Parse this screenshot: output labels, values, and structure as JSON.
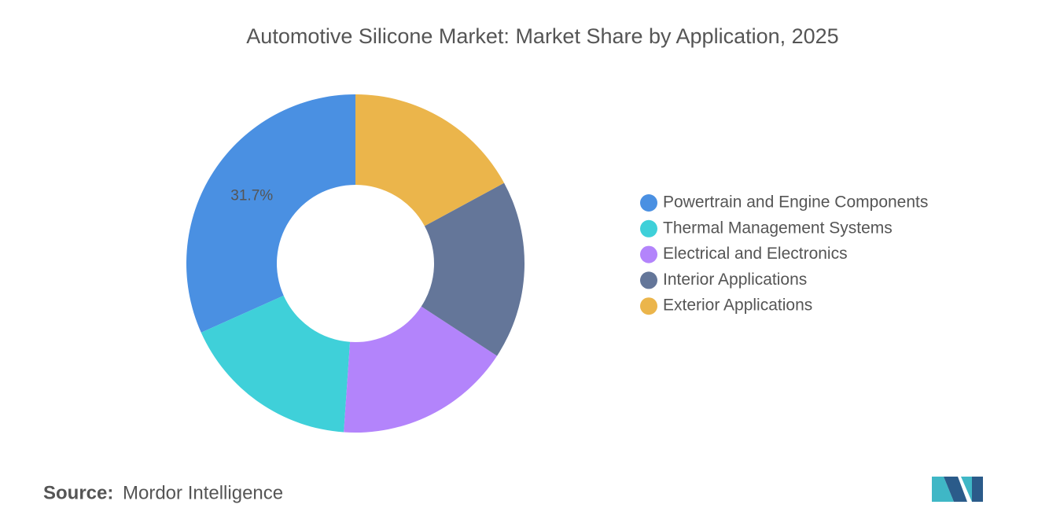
{
  "chart_data": {
    "type": "donut",
    "title": "Automotive Silicone Market: Market Share by Application, 2025",
    "categories": [
      "Powertrain and Engine Components",
      "Thermal Management Systems",
      "Electrical and Electronics",
      "Interior Applications",
      "Exterior Applications"
    ],
    "values": [
      31.7,
      17.2,
      16.9,
      17.1,
      17.1
    ],
    "value_labels": [
      "31.7%",
      null,
      null,
      null,
      null
    ],
    "colors": [
      "#4a90e2",
      "#3fd0d9",
      "#b384fb",
      "#647699",
      "#ebb54b"
    ],
    "legend": "right"
  },
  "footer": {
    "source_label": "Source:",
    "source": "Mordor Intelligence"
  }
}
